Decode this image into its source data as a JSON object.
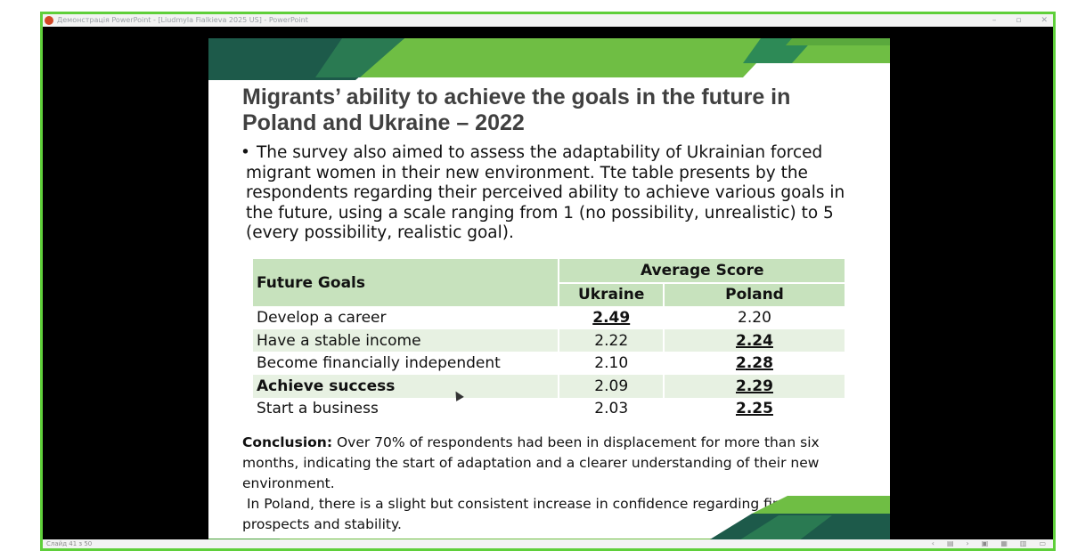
{
  "window": {
    "title": "Демонстрація PowerPoint - [Liudmyla Fialkieva 2025 US] - PowerPoint",
    "controls": [
      "–",
      "▫",
      "✕"
    ]
  },
  "colors": {
    "frame_border": "#5fcf3a",
    "slide_green_light": "#6fbe44",
    "slide_green_dark": "#1d5a4a",
    "table_header": "#c7e2bd",
    "table_alt_row": "#e7f1e2"
  },
  "slide": {
    "title": "Migrants’ ability to achieve the goals in the future in Poland and Ukraine – 2022",
    "bullet_symbol": "•",
    "bullet_text": "The survey also aimed to assess the adaptability of Ukrainian forced migrant women in their new environment. Tte table presents by the respondents regarding their perceived ability to achieve various goals in the future, using a scale ranging from 1 (no possibility, unrealistic) to 5 (every possibility, realistic goal).",
    "table": {
      "col_header_goal": "Future Goals",
      "col_header_group": "Average Score",
      "col_header_ukraine": "Ukraine",
      "col_header_poland": "Poland",
      "rows": [
        {
          "goal": "Develop a career",
          "ukraine": "2.49",
          "poland": "2.20"
        },
        {
          "goal": "Have a stable income",
          "ukraine": "2.22",
          "poland": "2.24"
        },
        {
          "goal": "Become financially independent",
          "ukraine": "2.10",
          "poland": "2.28"
        },
        {
          "goal": "Achieve success",
          "ukraine": "2.09",
          "poland": "2.29"
        },
        {
          "goal": "Start a business",
          "ukraine": "2.03",
          "poland": "2.25"
        }
      ]
    },
    "conclusion_label": "Conclusion:",
    "conclusion_text": " Over 70% of respondents had been in displacement for more than six months, indicating the start of adaptation and a clearer understanding of their new environment.",
    "conclusion_text_2": "In Poland, there is a slight but consistent increase in confidence regarding financial prospects and stability."
  },
  "statusbar": {
    "slide_count": "Слайд 41 з 50",
    "nav": [
      "‹",
      "▤",
      "›",
      "▣",
      "▦",
      "▥",
      "▭"
    ]
  }
}
